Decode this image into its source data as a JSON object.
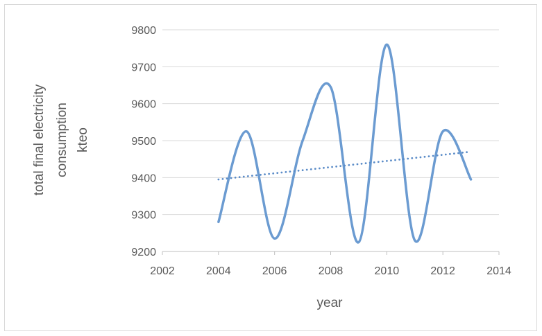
{
  "chart_data": {
    "type": "line",
    "title": "",
    "xlabel": "year",
    "ylabel_lines": [
      "total final electricity",
      "consumption",
      "kteo"
    ],
    "xlim": [
      2002,
      2014
    ],
    "ylim": [
      9200,
      9800
    ],
    "x_ticks": [
      2002,
      2004,
      2006,
      2008,
      2010,
      2012,
      2014
    ],
    "y_ticks": [
      9200,
      9300,
      9400,
      9500,
      9600,
      9700,
      9800
    ],
    "x_tick_labels": [
      "2002",
      "2004",
      "2006",
      "2008",
      "2010",
      "2012",
      "2014"
    ],
    "y_tick_labels": [
      "9200",
      "9300",
      "9400",
      "9500",
      "9600",
      "9700",
      "9800"
    ],
    "grid": "horizontal",
    "legend": "none",
    "series": [
      {
        "style": "smooth-line",
        "color": "#6b9bd1",
        "x": [
          2004,
          2005,
          2006,
          2007,
          2008,
          2009,
          2010,
          2011,
          2012,
          2013
        ],
        "values": [
          9280,
          9525,
          9235,
          9500,
          9645,
          9225,
          9760,
          9230,
          9525,
          9395
        ]
      },
      {
        "style": "dotted-trendline",
        "color": "#5b8cc8",
        "x": [
          2004,
          2013
        ],
        "values": [
          9395,
          9470
        ]
      }
    ]
  }
}
